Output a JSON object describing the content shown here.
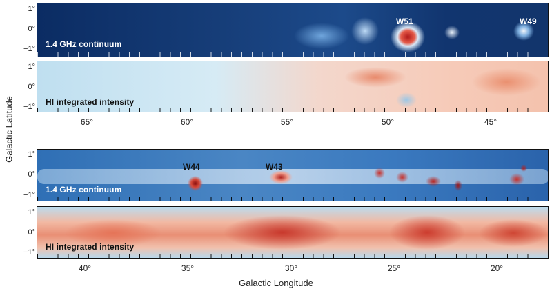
{
  "figure": {
    "y_axis_title": "Galactic Latitude",
    "x_axis_title": "Galactic Longitude",
    "lat_ticks": [
      "1°",
      "0°",
      "−1°"
    ],
    "top_lon_ticks": [
      "65°",
      "60°",
      "55°",
      "50°",
      "45°"
    ],
    "bottom_lon_ticks": [
      "40°",
      "35°",
      "30°",
      "25°",
      "20°"
    ]
  },
  "panels": [
    {
      "label": "1.4 GHz continuum",
      "sources": [
        "W51",
        "W49"
      ]
    },
    {
      "label": "HI integrated intensity",
      "sources": []
    },
    {
      "label": "1.4 GHz continuum",
      "sources": [
        "W44",
        "W43"
      ]
    },
    {
      "label": "HI integrated intensity",
      "sources": []
    }
  ]
}
